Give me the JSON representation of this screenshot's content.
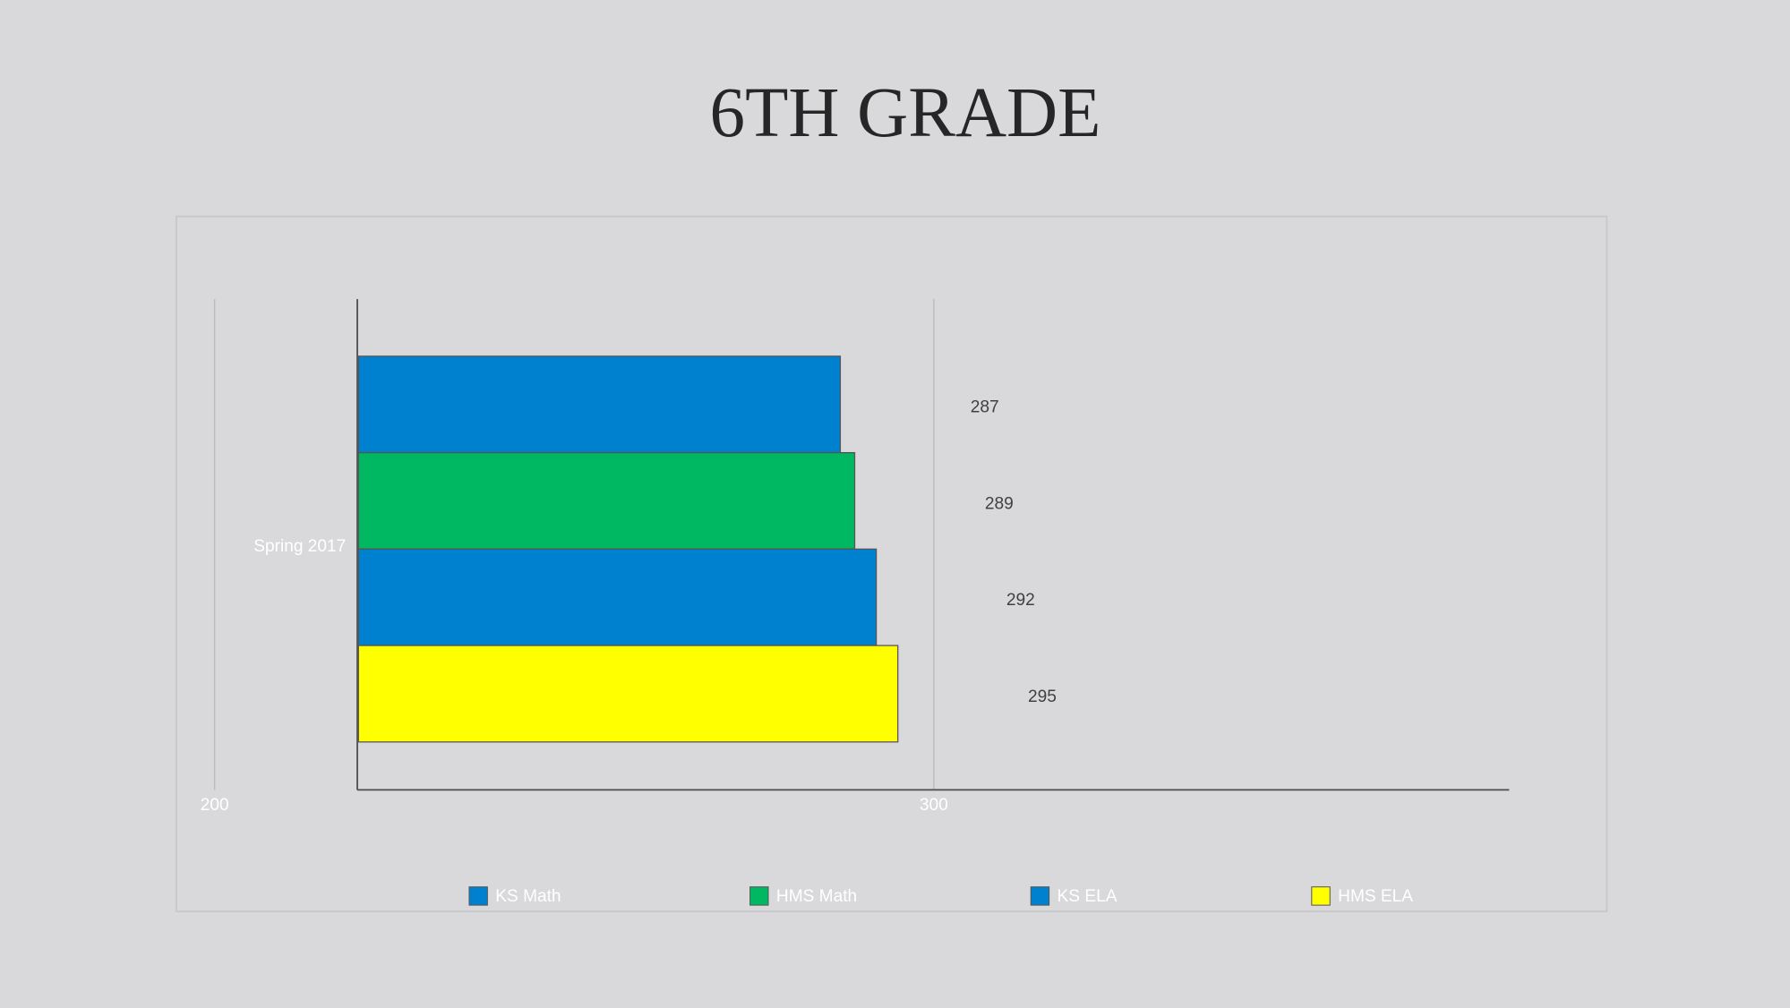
{
  "chart_data": {
    "type": "bar",
    "orientation": "horizontal",
    "title": "6TH GRADE",
    "categories": [
      "Spring 2017"
    ],
    "series": [
      {
        "name": "KS Math",
        "color": "#0081cf",
        "values": [
          287
        ]
      },
      {
        "name": "HMS Math",
        "color": "#00b862",
        "values": [
          289
        ]
      },
      {
        "name": "KS ELA",
        "color": "#0081cf",
        "values": [
          292
        ]
      },
      {
        "name": "HMS ELA",
        "color": "#ffff00",
        "values": [
          295
        ]
      }
    ],
    "xlim": [
      200,
      380
    ],
    "xticks": [
      200,
      300
    ],
    "grid": true,
    "legend": "bottom"
  }
}
